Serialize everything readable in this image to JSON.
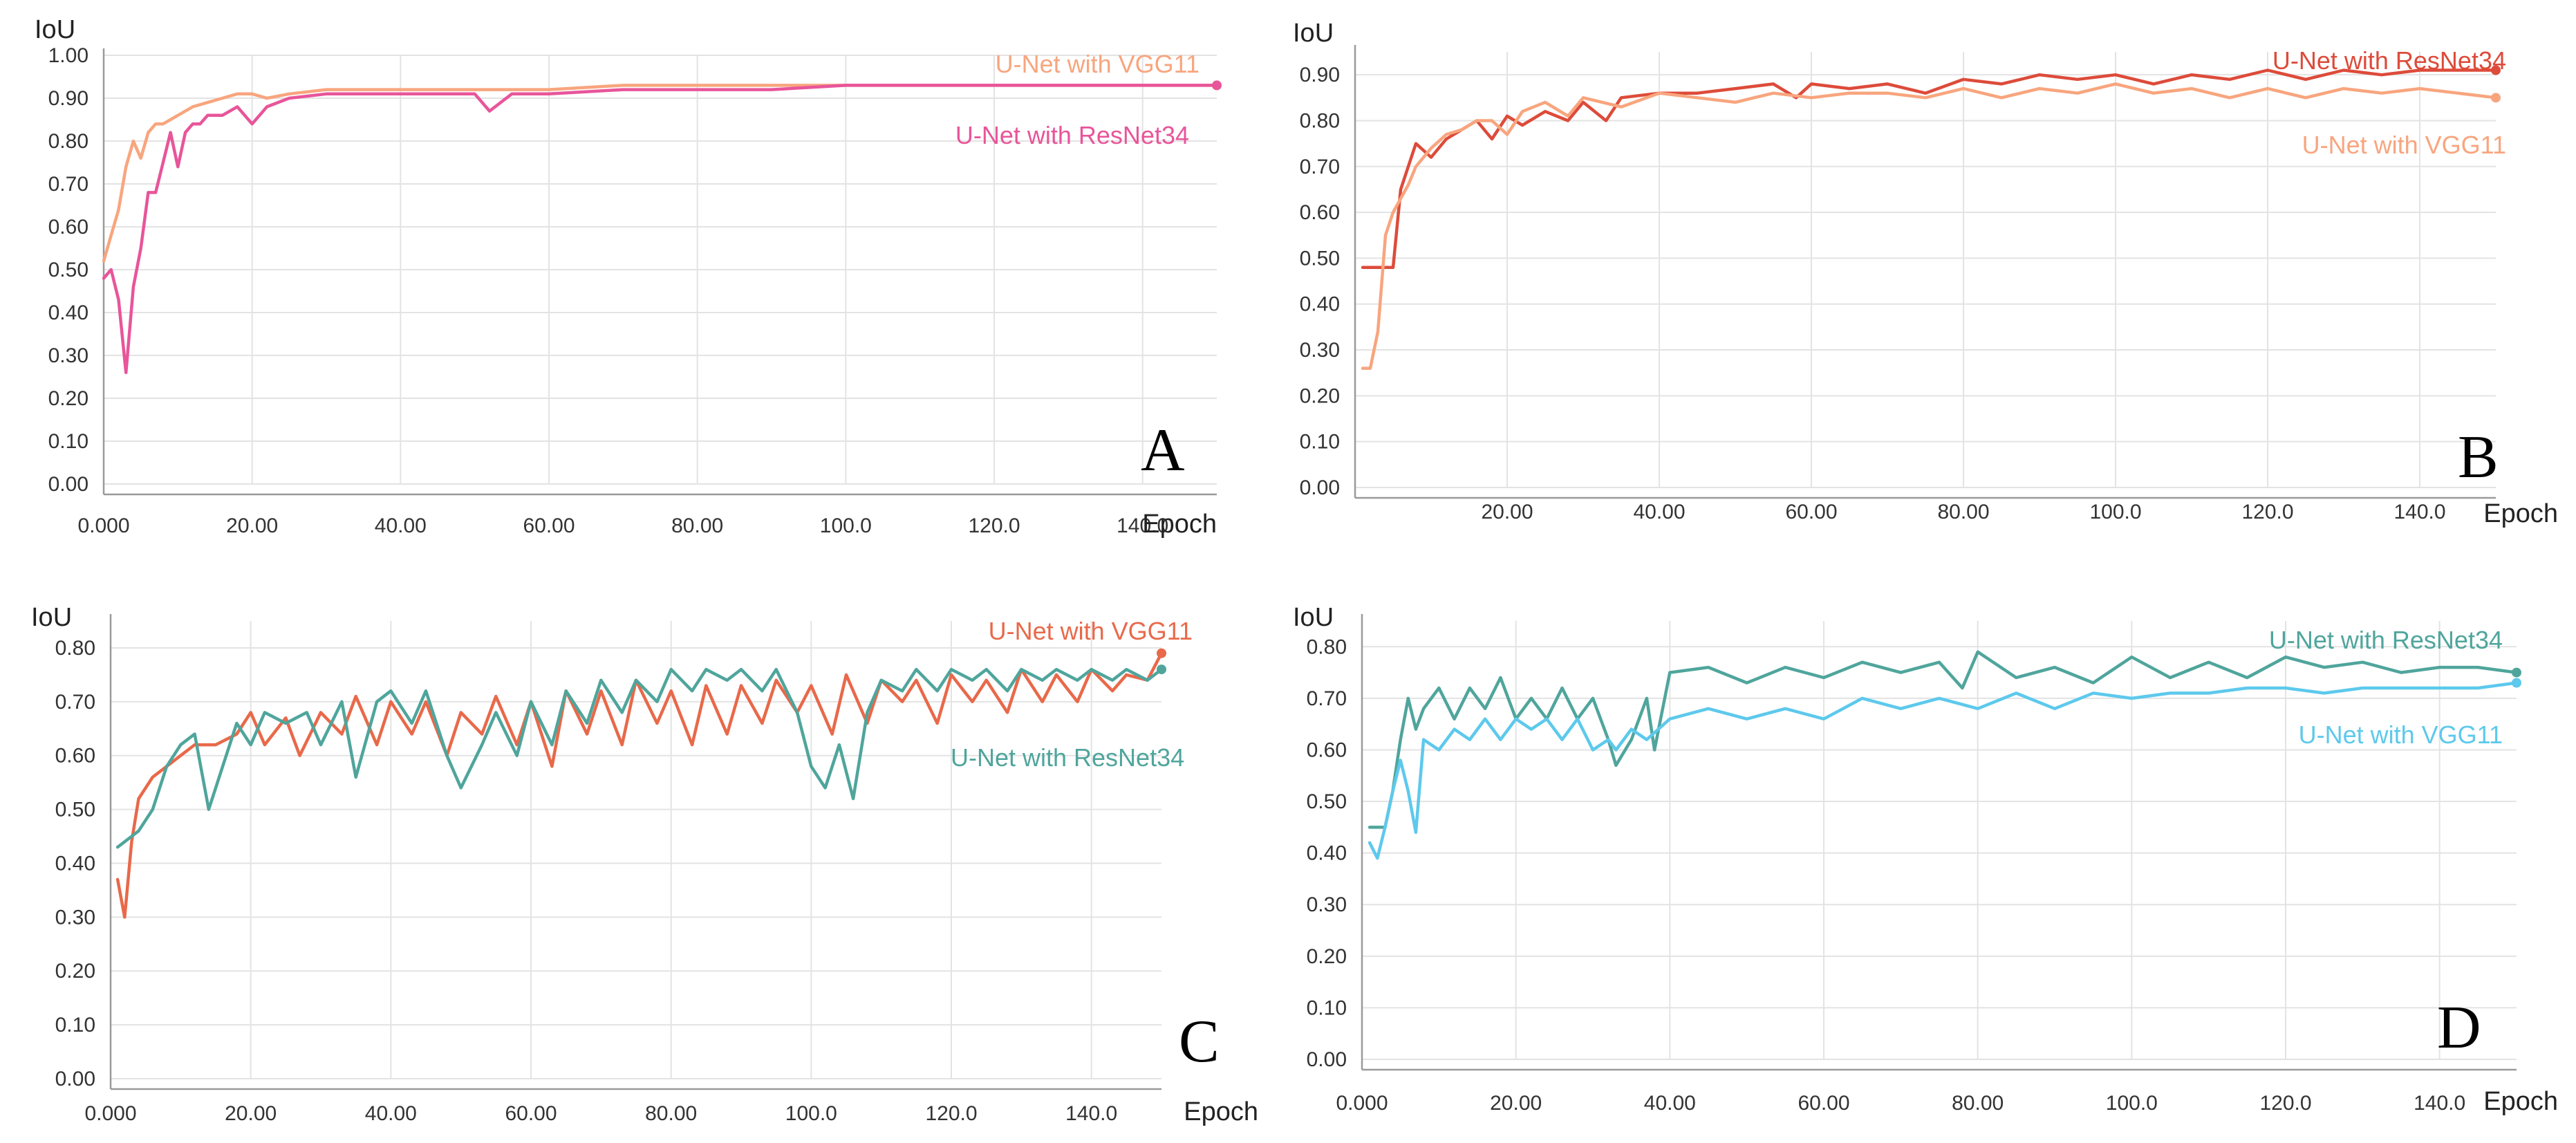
{
  "chart_data": [
    {
      "type": "line",
      "panel": "A",
      "ylabel": "IoU",
      "xlabel": "Epoch",
      "xlim": [
        0,
        150
      ],
      "ylim": [
        0,
        1.0
      ],
      "yticks": [
        0.0,
        0.1,
        0.2,
        0.3,
        0.4,
        0.5,
        0.6,
        0.7,
        0.8,
        0.9,
        1.0
      ],
      "ytick_labels": [
        "0.00",
        "0.10",
        "0.20",
        "0.30",
        "0.40",
        "0.50",
        "0.60",
        "0.70",
        "0.80",
        "0.90",
        "1.00"
      ],
      "xticks": [
        0,
        20,
        40,
        60,
        80,
        100,
        120,
        140
      ],
      "xtick_labels": [
        "0.000",
        "20.00",
        "40.00",
        "60.00",
        "80.00",
        "100.0",
        "120.0",
        "140.0"
      ],
      "grid": true,
      "series": [
        {
          "name": "U-Net with VGG11",
          "color": "#f8a57e",
          "x": [
            0,
            1,
            2,
            3,
            4,
            5,
            6,
            7,
            8,
            10,
            12,
            14,
            16,
            18,
            20,
            22,
            25,
            30,
            35,
            40,
            45,
            50,
            55,
            60,
            70,
            80,
            90,
            100,
            110,
            120,
            130,
            140,
            150
          ],
          "y": [
            0.52,
            0.58,
            0.64,
            0.74,
            0.8,
            0.76,
            0.82,
            0.84,
            0.84,
            0.86,
            0.88,
            0.89,
            0.9,
            0.91,
            0.91,
            0.9,
            0.91,
            0.92,
            0.92,
            0.92,
            0.92,
            0.92,
            0.92,
            0.92,
            0.93,
            0.93,
            0.93,
            0.93,
            0.93,
            0.93,
            0.93,
            0.93,
            0.93
          ]
        },
        {
          "name": "U-Net with ResNet34",
          "color": "#e8559a",
          "x": [
            0,
            1,
            2,
            3,
            4,
            5,
            6,
            7,
            8,
            9,
            10,
            11,
            12,
            13,
            14,
            16,
            18,
            20,
            22,
            25,
            30,
            35,
            40,
            45,
            50,
            52,
            55,
            60,
            70,
            80,
            90,
            100,
            110,
            120,
            130,
            140,
            150
          ],
          "y": [
            0.48,
            0.5,
            0.43,
            0.26,
            0.46,
            0.55,
            0.68,
            0.68,
            0.75,
            0.82,
            0.74,
            0.82,
            0.84,
            0.84,
            0.86,
            0.86,
            0.88,
            0.84,
            0.88,
            0.9,
            0.91,
            0.91,
            0.91,
            0.91,
            0.91,
            0.87,
            0.91,
            0.91,
            0.92,
            0.92,
            0.92,
            0.93,
            0.93,
            0.93,
            0.93,
            0.93,
            0.93
          ]
        }
      ]
    },
    {
      "type": "line",
      "panel": "B",
      "ylabel": "IoU",
      "xlabel": "Epoch",
      "xlim": [
        0,
        150
      ],
      "ylim": [
        0,
        0.95
      ],
      "yticks": [
        0.0,
        0.1,
        0.2,
        0.3,
        0.4,
        0.5,
        0.6,
        0.7,
        0.8,
        0.9
      ],
      "ytick_labels": [
        "0.00",
        "0.10",
        "0.20",
        "0.30",
        "0.40",
        "0.50",
        "0.60",
        "0.70",
        "0.80",
        "0.90"
      ],
      "xticks": [
        20,
        40,
        60,
        80,
        100,
        120,
        140
      ],
      "xtick_labels": [
        "20.00",
        "40.00",
        "60.00",
        "80.00",
        "100.0",
        "120.0",
        "140.0"
      ],
      "grid": true,
      "series": [
        {
          "name": "U-Net with ResNet34",
          "color": "#dd4b3a",
          "x": [
            1,
            4,
            5,
            6,
            8,
            10,
            12,
            14,
            16,
            18,
            20,
            22,
            25,
            28,
            30,
            33,
            35,
            40,
            45,
            50,
            55,
            58,
            60,
            65,
            70,
            75,
            80,
            85,
            90,
            95,
            100,
            105,
            110,
            115,
            120,
            125,
            130,
            135,
            140,
            145,
            150
          ],
          "y": [
            0.48,
            0.48,
            0.48,
            0.65,
            0.75,
            0.72,
            0.76,
            0.78,
            0.8,
            0.76,
            0.81,
            0.79,
            0.82,
            0.8,
            0.84,
            0.8,
            0.85,
            0.86,
            0.86,
            0.87,
            0.88,
            0.85,
            0.88,
            0.87,
            0.88,
            0.86,
            0.89,
            0.88,
            0.9,
            0.89,
            0.9,
            0.88,
            0.9,
            0.89,
            0.91,
            0.89,
            0.91,
            0.9,
            0.91,
            0.91,
            0.91
          ]
        },
        {
          "name": "U-Net with VGG11",
          "color": "#f8a57e",
          "x": [
            1,
            2,
            3,
            4,
            5,
            6,
            7,
            8,
            10,
            12,
            14,
            16,
            18,
            20,
            22,
            25,
            28,
            30,
            35,
            40,
            45,
            50,
            55,
            60,
            65,
            70,
            75,
            80,
            85,
            90,
            95,
            100,
            105,
            110,
            115,
            120,
            125,
            130,
            135,
            140,
            145,
            150
          ],
          "y": [
            0.26,
            0.26,
            0.34,
            0.55,
            0.6,
            0.63,
            0.66,
            0.7,
            0.74,
            0.77,
            0.78,
            0.8,
            0.8,
            0.77,
            0.82,
            0.84,
            0.81,
            0.85,
            0.83,
            0.86,
            0.85,
            0.84,
            0.86,
            0.85,
            0.86,
            0.86,
            0.85,
            0.87,
            0.85,
            0.87,
            0.86,
            0.88,
            0.86,
            0.87,
            0.85,
            0.87,
            0.85,
            0.87,
            0.86,
            0.87,
            0.86,
            0.85
          ]
        }
      ]
    },
    {
      "type": "line",
      "panel": "C",
      "ylabel": "IoU",
      "xlabel": "Epoch",
      "xlim": [
        0,
        150
      ],
      "ylim": [
        0,
        0.85
      ],
      "yticks": [
        0.0,
        0.1,
        0.2,
        0.3,
        0.4,
        0.5,
        0.6,
        0.7,
        0.8
      ],
      "ytick_labels": [
        "0.00",
        "0.10",
        "0.20",
        "0.30",
        "0.40",
        "0.50",
        "0.60",
        "0.70",
        "0.80"
      ],
      "xticks": [
        0,
        20,
        40,
        60,
        80,
        100,
        120,
        140
      ],
      "xtick_labels": [
        "0.000",
        "20.00",
        "40.00",
        "60.00",
        "80.00",
        "100.0",
        "120.0",
        "140.0"
      ],
      "grid": true,
      "series": [
        {
          "name": "U-Net with VGG11",
          "color": "#e8694a",
          "x": [
            1,
            2,
            3,
            4,
            6,
            8,
            10,
            12,
            15,
            18,
            20,
            22,
            25,
            27,
            30,
            33,
            35,
            38,
            40,
            43,
            45,
            48,
            50,
            53,
            55,
            58,
            60,
            63,
            65,
            68,
            70,
            73,
            75,
            78,
            80,
            83,
            85,
            88,
            90,
            93,
            95,
            98,
            100,
            103,
            105,
            108,
            110,
            113,
            115,
            118,
            120,
            123,
            125,
            128,
            130,
            133,
            135,
            138,
            140,
            143,
            145,
            148,
            150
          ],
          "y": [
            0.37,
            0.3,
            0.44,
            0.52,
            0.56,
            0.58,
            0.6,
            0.62,
            0.62,
            0.64,
            0.68,
            0.62,
            0.67,
            0.6,
            0.68,
            0.64,
            0.71,
            0.62,
            0.7,
            0.64,
            0.7,
            0.6,
            0.68,
            0.64,
            0.71,
            0.62,
            0.7,
            0.58,
            0.72,
            0.64,
            0.72,
            0.62,
            0.74,
            0.66,
            0.72,
            0.62,
            0.73,
            0.64,
            0.73,
            0.66,
            0.74,
            0.68,
            0.73,
            0.64,
            0.75,
            0.66,
            0.74,
            0.7,
            0.74,
            0.66,
            0.75,
            0.7,
            0.74,
            0.68,
            0.76,
            0.7,
            0.75,
            0.7,
            0.76,
            0.72,
            0.75,
            0.74,
            0.79
          ]
        },
        {
          "name": "U-Net with ResNet34",
          "color": "#4fa59c",
          "x": [
            1,
            2,
            3,
            4,
            6,
            8,
            10,
            12,
            14,
            16,
            18,
            20,
            22,
            25,
            28,
            30,
            33,
            35,
            38,
            40,
            43,
            45,
            48,
            50,
            53,
            55,
            58,
            60,
            63,
            65,
            68,
            70,
            73,
            75,
            78,
            80,
            83,
            85,
            88,
            90,
            93,
            95,
            98,
            100,
            102,
            104,
            106,
            108,
            110,
            113,
            115,
            118,
            120,
            123,
            125,
            128,
            130,
            133,
            135,
            138,
            140,
            143,
            145,
            148,
            150
          ],
          "y": [
            0.43,
            0.44,
            0.45,
            0.46,
            0.5,
            0.58,
            0.62,
            0.64,
            0.5,
            0.58,
            0.66,
            0.62,
            0.68,
            0.66,
            0.68,
            0.62,
            0.7,
            0.56,
            0.7,
            0.72,
            0.66,
            0.72,
            0.6,
            0.54,
            0.62,
            0.68,
            0.6,
            0.7,
            0.62,
            0.72,
            0.66,
            0.74,
            0.68,
            0.74,
            0.7,
            0.76,
            0.72,
            0.76,
            0.74,
            0.76,
            0.72,
            0.76,
            0.68,
            0.58,
            0.54,
            0.62,
            0.52,
            0.68,
            0.74,
            0.72,
            0.76,
            0.72,
            0.76,
            0.74,
            0.76,
            0.72,
            0.76,
            0.74,
            0.76,
            0.74,
            0.76,
            0.74,
            0.76,
            0.74,
            0.76
          ]
        }
      ]
    },
    {
      "type": "line",
      "panel": "D",
      "ylabel": "IoU",
      "xlabel": "Epoch",
      "xlim": [
        0,
        150
      ],
      "ylim": [
        0,
        0.85
      ],
      "yticks": [
        0.0,
        0.1,
        0.2,
        0.3,
        0.4,
        0.5,
        0.6,
        0.7,
        0.8
      ],
      "ytick_labels": [
        "0.00",
        "0.10",
        "0.20",
        "0.30",
        "0.40",
        "0.50",
        "0.60",
        "0.70",
        "0.80"
      ],
      "xticks": [
        0,
        20,
        40,
        60,
        80,
        100,
        120,
        140
      ],
      "xtick_labels": [
        "0.000",
        "20.00",
        "40.00",
        "60.00",
        "80.00",
        "100.0",
        "120.0",
        "140.0"
      ],
      "grid": true,
      "series": [
        {
          "name": "U-Net with ResNet34",
          "color": "#4fa59c",
          "x": [
            1,
            2,
            3,
            4,
            5,
            6,
            7,
            8,
            10,
            12,
            14,
            16,
            18,
            20,
            22,
            24,
            26,
            28,
            30,
            32,
            33,
            35,
            37,
            38,
            40,
            45,
            50,
            55,
            60,
            65,
            70,
            75,
            78,
            80,
            85,
            90,
            95,
            100,
            105,
            110,
            115,
            120,
            125,
            130,
            135,
            140,
            145,
            150
          ],
          "y": [
            0.45,
            0.45,
            0.45,
            0.52,
            0.62,
            0.7,
            0.64,
            0.68,
            0.72,
            0.66,
            0.72,
            0.68,
            0.74,
            0.66,
            0.7,
            0.66,
            0.72,
            0.66,
            0.7,
            0.62,
            0.57,
            0.62,
            0.7,
            0.6,
            0.75,
            0.76,
            0.73,
            0.76,
            0.74,
            0.77,
            0.75,
            0.77,
            0.72,
            0.79,
            0.74,
            0.76,
            0.73,
            0.78,
            0.74,
            0.77,
            0.74,
            0.78,
            0.76,
            0.77,
            0.75,
            0.76,
            0.76,
            0.75
          ]
        },
        {
          "name": "U-Net with VGG11",
          "color": "#5dc9ec",
          "x": [
            1,
            2,
            3,
            4,
            5,
            6,
            7,
            8,
            10,
            12,
            14,
            16,
            18,
            20,
            22,
            24,
            26,
            28,
            30,
            32,
            33,
            35,
            37,
            40,
            45,
            50,
            55,
            60,
            65,
            70,
            75,
            80,
            85,
            90,
            95,
            100,
            105,
            110,
            115,
            120,
            125,
            130,
            135,
            140,
            145,
            150
          ],
          "y": [
            0.42,
            0.39,
            0.45,
            0.52,
            0.58,
            0.52,
            0.44,
            0.62,
            0.6,
            0.64,
            0.62,
            0.66,
            0.62,
            0.66,
            0.64,
            0.66,
            0.62,
            0.66,
            0.6,
            0.62,
            0.6,
            0.64,
            0.62,
            0.66,
            0.68,
            0.66,
            0.68,
            0.66,
            0.7,
            0.68,
            0.7,
            0.68,
            0.71,
            0.68,
            0.71,
            0.7,
            0.71,
            0.71,
            0.72,
            0.72,
            0.71,
            0.72,
            0.72,
            0.72,
            0.72,
            0.73
          ]
        }
      ]
    }
  ]
}
